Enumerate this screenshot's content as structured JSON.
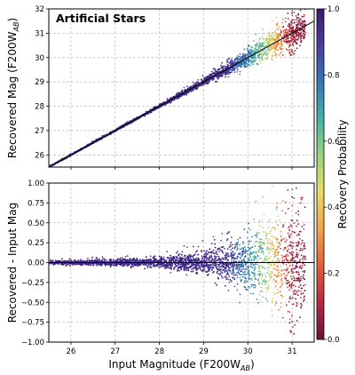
{
  "chart_data": [
    {
      "type": "scatter",
      "title": "Artificial Stars",
      "xlabel_main": "",
      "ylabel_prefix": "Recovered Mag (F200W",
      "ylabel_sub": "AB",
      "ylabel_suffix": ")",
      "xlim": [
        25.5,
        31.5
      ],
      "ylim": [
        25.5,
        32
      ],
      "xticks": [
        26,
        27,
        28,
        29,
        30,
        31
      ],
      "yticks": [
        26,
        27,
        28,
        29,
        30,
        31,
        32
      ],
      "grid": true,
      "one_to_one_line": true,
      "x_range": [
        25.5,
        31.3
      ],
      "recovered_fraction_trend": [
        {
          "x": 25.5,
          "p": 0.99
        },
        {
          "x": 29.5,
          "p": 0.95
        },
        {
          "x": 30.0,
          "p": 0.75
        },
        {
          "x": 30.4,
          "p": 0.55
        },
        {
          "x": 30.7,
          "p": 0.3
        },
        {
          "x": 31.0,
          "p": 0.05
        }
      ]
    },
    {
      "type": "scatter",
      "xlabel_prefix": "Input Magnitude (F200W",
      "xlabel_sub": "AB",
      "xlabel_suffix": ")",
      "ylabel": "Recovered - Input Mag",
      "xlim": [
        25.5,
        31.5
      ],
      "ylim": [
        -1.0,
        1.0
      ],
      "xticks": [
        26,
        27,
        28,
        29,
        30,
        31
      ],
      "yticks": [
        -1.0,
        -0.75,
        -0.5,
        -0.25,
        0.0,
        0.25,
        0.5,
        0.75,
        1.0
      ],
      "ytick_labels": [
        "−1.00",
        "−0.75",
        "−0.50",
        "−0.25",
        "0.00",
        "0.25",
        "0.50",
        "0.75",
        "1.00"
      ],
      "grid": true,
      "zero_line": true,
      "scatter_sigma_trend": [
        {
          "x": 25.5,
          "sigma": 0.01
        },
        {
          "x": 28.0,
          "sigma": 0.03
        },
        {
          "x": 29.0,
          "sigma": 0.07
        },
        {
          "x": 30.0,
          "sigma": 0.17
        },
        {
          "x": 31.0,
          "sigma": 0.35
        }
      ]
    }
  ],
  "colorbar": {
    "label": "Recovery Probability",
    "range": [
      0.0,
      1.0
    ],
    "ticks": [
      0.0,
      0.2,
      0.4,
      0.6,
      0.8,
      1.0
    ],
    "tick_labels": [
      "0.0",
      "0.2",
      "0.4",
      "0.6",
      "0.8",
      "1.0"
    ],
    "colormap_stops": [
      "#6e0f3b",
      "#b22a43",
      "#e0603a",
      "#f3a24a",
      "#e8dc62",
      "#9fd37c",
      "#43b2a6",
      "#3578b7",
      "#4a3f9c",
      "#3c1a72"
    ]
  },
  "colors": {
    "frame": "#000000",
    "grid": "#b0b0b0",
    "line": "#000000"
  }
}
